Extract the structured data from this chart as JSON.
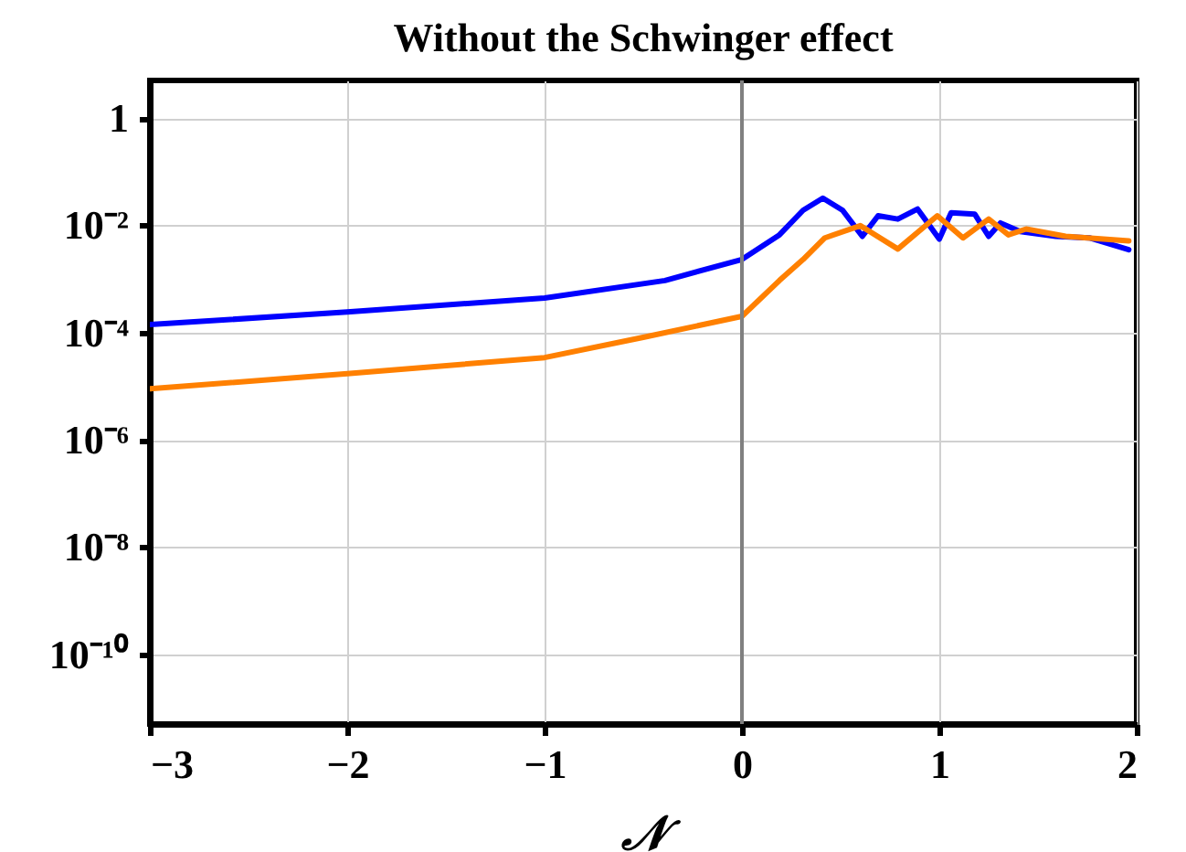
{
  "chart_data": {
    "type": "line",
    "title": "Without the Schwinger effect",
    "xlabel": "𝒩",
    "xlim": [
      -3,
      2
    ],
    "xticks": [
      {
        "value": -3,
        "label": "−3"
      },
      {
        "value": -2,
        "label": "−2"
      },
      {
        "value": -1,
        "label": "−1"
      },
      0,
      1,
      2
    ],
    "ylim": [
      5e-12,
      5
    ],
    "yticks": [
      1,
      {
        "value": 0.01,
        "label": "10⁻²"
      },
      {
        "value": 0.0001,
        "label": "10⁻⁴"
      },
      {
        "value": 1e-06,
        "label": "10⁻⁶"
      },
      {
        "value": 1e-08,
        "label": "10⁻⁸"
      },
      {
        "value": 1e-10,
        "label": "10⁻¹⁰"
      }
    ],
    "log": "y",
    "grid": true,
    "ref_lines": [
      {
        "axis": "x",
        "value": 0,
        "color": "#808080"
      }
    ],
    "series": [
      {
        "color": "#0000ff",
        "x": [
          -3,
          -2,
          -1,
          -0.39,
          0,
          0.19,
          0.31,
          0.41,
          0.51,
          0.61,
          0.69,
          0.79,
          0.89,
          1.0,
          1.06,
          1.18,
          1.25,
          1.31,
          1.41,
          1.59,
          1.76,
          1.96
        ],
        "values": [
          0.00014,
          0.00024,
          0.00044,
          0.00093,
          0.0023,
          0.0066,
          0.019,
          0.032,
          0.019,
          0.0062,
          0.015,
          0.013,
          0.02,
          0.0055,
          0.017,
          0.016,
          0.0062,
          0.011,
          0.0076,
          0.0062,
          0.0058,
          0.0035
        ]
      },
      {
        "color": "#ff8000",
        "x": [
          -3,
          -2,
          -1,
          -0.5,
          0,
          0.19,
          0.31,
          0.42,
          0.6,
          0.79,
          0.99,
          1.12,
          1.25,
          1.35,
          1.44,
          1.64,
          1.96
        ],
        "values": [
          8.9e-06,
          1.7e-05,
          3.4e-05,
          8.1e-05,
          0.0002,
          0.00093,
          0.0023,
          0.0058,
          0.0098,
          0.0036,
          0.015,
          0.0058,
          0.013,
          0.0066,
          0.0085,
          0.0062,
          0.0051
        ]
      }
    ]
  }
}
